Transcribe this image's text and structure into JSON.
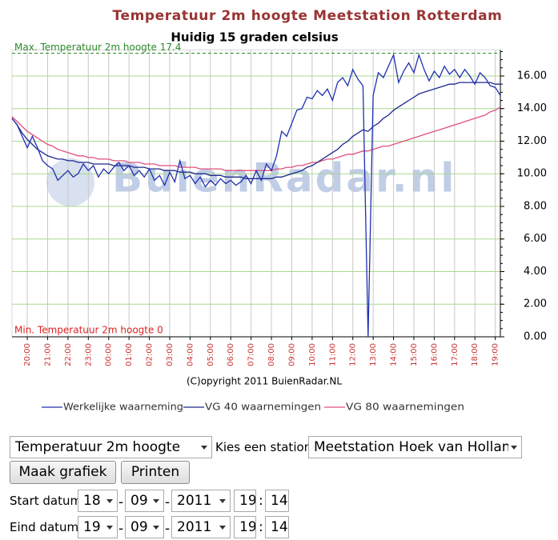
{
  "chart_data": {
    "type": "line",
    "title": "Temperatuur 2m hoogte Meetstation Rotterdam",
    "subtitle": "Huidig 15 graden celsius",
    "annotations": [
      "Max. Temperatuur 2m hoogte 17.4",
      "Min. Temperatuur 2m hoogte 0"
    ],
    "max_value": 17.4,
    "watermark": "BuienRadar.nl",
    "copyright": "(C)opyright 2011 BuienRadar.NL",
    "categories": [
      null,
      null,
      null,
      "20:00",
      null,
      null,
      null,
      "21:00",
      null,
      null,
      null,
      "22:00",
      null,
      null,
      null,
      "23:00",
      null,
      null,
      null,
      "00:00",
      null,
      null,
      null,
      "01:00",
      null,
      null,
      null,
      "02:00",
      null,
      null,
      null,
      "03:00",
      null,
      null,
      null,
      "04:00",
      null,
      null,
      null,
      "05:00",
      null,
      null,
      null,
      "06:00",
      null,
      null,
      null,
      "07:00",
      null,
      null,
      null,
      "08:00",
      null,
      null,
      null,
      "09:00",
      null,
      null,
      null,
      "10:00",
      null,
      null,
      null,
      "11:00",
      null,
      null,
      null,
      "12:00",
      null,
      null,
      null,
      "13:00",
      null,
      null,
      null,
      "14:00",
      null,
      null,
      null,
      "15:00",
      null,
      null,
      null,
      "16:00",
      null,
      null,
      null,
      "17:00",
      null,
      null,
      null,
      "18:00",
      null,
      null,
      null,
      "19:00",
      null
    ],
    "series": [
      {
        "name": "Werkelijke waarneming",
        "color": "#2030b0",
        "values": [
          13.4,
          13.0,
          12.3,
          11.6,
          12.3,
          11.6,
          10.8,
          10.5,
          10.3,
          9.6,
          9.9,
          10.2,
          9.8,
          10.0,
          10.6,
          10.2,
          10.5,
          9.8,
          10.3,
          10.0,
          10.4,
          10.7,
          10.2,
          10.5,
          9.9,
          10.2,
          9.8,
          10.3,
          9.6,
          9.9,
          9.3,
          10.1,
          9.5,
          10.8,
          9.7,
          9.9,
          9.4,
          9.8,
          9.2,
          9.6,
          9.3,
          9.7,
          9.4,
          9.6,
          9.3,
          9.5,
          9.9,
          9.4,
          10.2,
          9.6,
          10.6,
          10.2,
          11.1,
          12.6,
          12.3,
          13.1,
          13.9,
          14.0,
          14.7,
          14.6,
          15.1,
          14.8,
          15.2,
          14.5,
          15.6,
          15.9,
          15.4,
          16.4,
          15.8,
          15.4,
          0.0,
          14.8,
          16.2,
          15.9,
          16.6,
          17.3,
          15.6,
          16.3,
          16.8,
          16.2,
          17.3,
          16.4,
          15.7,
          16.3,
          15.9,
          16.6,
          16.1,
          16.4,
          15.9,
          16.4,
          16.0,
          15.5,
          16.2,
          15.9,
          15.4,
          15.3,
          14.8
        ]
      },
      {
        "name": "VG 40 waarnemingen",
        "color": "#1c2a8c",
        "values": [
          13.4,
          13.0,
          12.5,
          12.1,
          11.8,
          11.5,
          11.3,
          11.1,
          11.0,
          10.9,
          10.9,
          10.8,
          10.8,
          10.7,
          10.7,
          10.7,
          10.6,
          10.6,
          10.6,
          10.6,
          10.5,
          10.5,
          10.5,
          10.5,
          10.4,
          10.4,
          10.4,
          10.3,
          10.3,
          10.3,
          10.2,
          10.2,
          10.2,
          10.1,
          10.1,
          10.1,
          10.0,
          10.0,
          10.0,
          9.9,
          9.9,
          9.9,
          9.8,
          9.8,
          9.8,
          9.8,
          9.7,
          9.7,
          9.7,
          9.7,
          9.7,
          9.7,
          9.8,
          9.8,
          9.9,
          10.0,
          10.1,
          10.2,
          10.4,
          10.5,
          10.7,
          10.9,
          11.1,
          11.3,
          11.5,
          11.8,
          12.0,
          12.3,
          12.5,
          12.7,
          12.6,
          12.9,
          13.1,
          13.4,
          13.6,
          13.9,
          14.1,
          14.3,
          14.5,
          14.7,
          14.9,
          15.0,
          15.1,
          15.2,
          15.3,
          15.4,
          15.5,
          15.5,
          15.6,
          15.6,
          15.6,
          15.6,
          15.6,
          15.6,
          15.6,
          15.5,
          15.5
        ]
      },
      {
        "name": "VG 80 waarnemingen",
        "color": "#e0507a",
        "values": [
          13.5,
          13.2,
          12.9,
          12.6,
          12.4,
          12.2,
          12.0,
          11.8,
          11.7,
          11.5,
          11.4,
          11.3,
          11.2,
          11.1,
          11.1,
          11.0,
          11.0,
          10.9,
          10.9,
          10.9,
          10.8,
          10.8,
          10.8,
          10.7,
          10.7,
          10.7,
          10.6,
          10.6,
          10.6,
          10.5,
          10.5,
          10.5,
          10.5,
          10.4,
          10.4,
          10.4,
          10.4,
          10.3,
          10.3,
          10.3,
          10.3,
          10.3,
          10.2,
          10.2,
          10.2,
          10.2,
          10.2,
          10.2,
          10.2,
          10.2,
          10.2,
          10.2,
          10.3,
          10.3,
          10.4,
          10.4,
          10.5,
          10.5,
          10.6,
          10.7,
          10.7,
          10.8,
          10.9,
          10.9,
          11.0,
          11.1,
          11.2,
          11.2,
          11.3,
          11.4,
          11.4,
          11.5,
          11.6,
          11.7,
          11.7,
          11.8,
          11.9,
          12.0,
          12.1,
          12.2,
          12.3,
          12.4,
          12.5,
          12.6,
          12.7,
          12.8,
          12.9,
          13.0,
          13.1,
          13.2,
          13.3,
          13.4,
          13.5,
          13.6,
          13.8,
          13.9,
          14.1
        ]
      }
    ],
    "ylim": [
      0,
      17.5
    ],
    "yticks": [
      {
        "value": 0,
        "label": "0.00"
      },
      {
        "value": 2,
        "label": "2.00"
      },
      {
        "value": 4,
        "label": "4.00"
      },
      {
        "value": 6,
        "label": "6.00"
      },
      {
        "value": 8,
        "label": "8.00"
      },
      {
        "value": 10,
        "label": "10.00"
      },
      {
        "value": 12,
        "label": "12.00"
      },
      {
        "value": 14,
        "label": "14.00"
      },
      {
        "value": 16,
        "label": "16.00"
      }
    ],
    "grid": true,
    "legend": "bottom"
  },
  "form": {
    "variable": "Temperatuur 2m hoogte",
    "station_label": "Kies een station:",
    "station": "Meetstation Hoek van Holland",
    "buttons": [
      "Maak grafiek",
      "Printen"
    ],
    "date_separator": "-",
    "time_separator": ":",
    "start": {
      "label": "Start datum",
      "day": "18",
      "month": "09",
      "year": "2011",
      "hour": "19",
      "minute": "14"
    },
    "end": {
      "label": "Eind datum",
      "day": "19",
      "month": "09",
      "year": "2011",
      "hour": "19",
      "minute": "14"
    }
  }
}
